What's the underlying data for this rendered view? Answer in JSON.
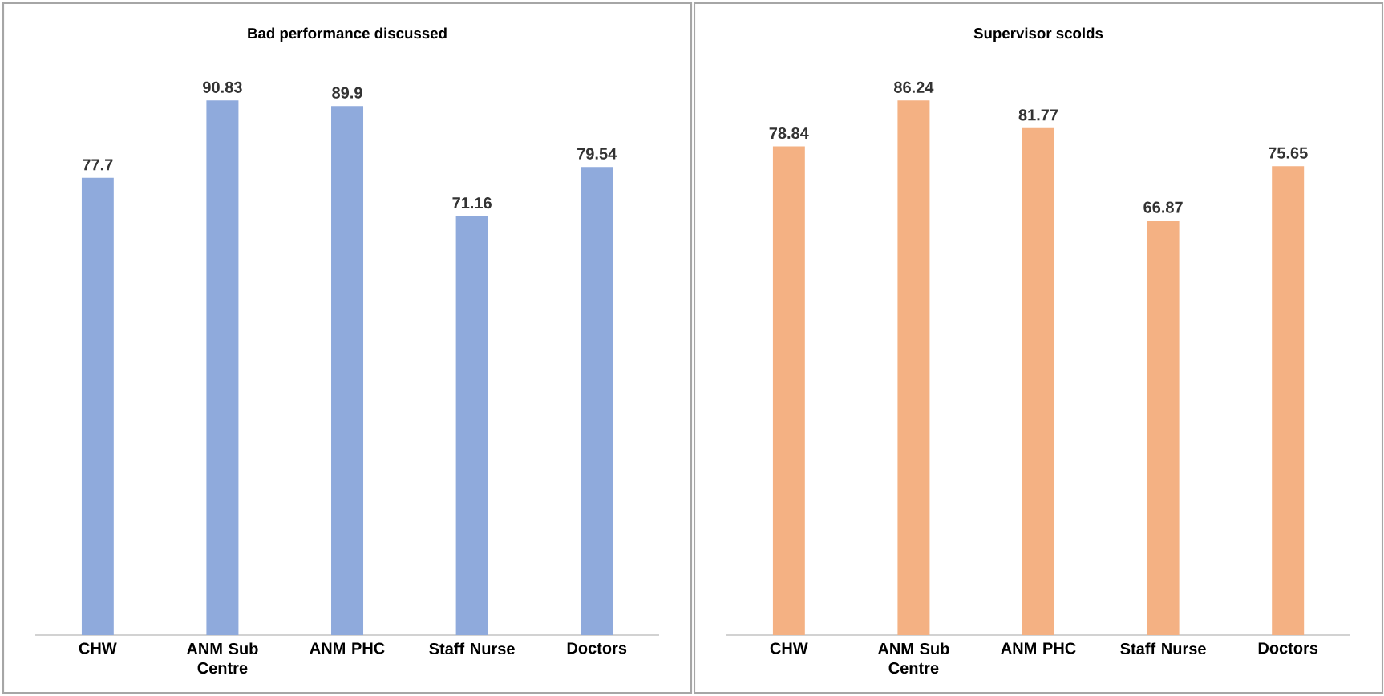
{
  "chart_data": [
    {
      "type": "bar",
      "title": "Bad performance discussed",
      "categories": [
        "CHW",
        "ANM Sub Centre",
        "ANM PHC",
        "Staff Nurse",
        "Doctors"
      ],
      "values": [
        77.7,
        90.83,
        89.9,
        71.16,
        79.54
      ],
      "color": "#8faadc",
      "data_labels": true,
      "tick_labels": "x"
    },
    {
      "type": "bar",
      "title": "Supervisor scolds",
      "categories": [
        "CHW",
        "ANM Sub Centre",
        "ANM PHC",
        "Staff Nurse",
        "Doctors"
      ],
      "values": [
        78.84,
        86.24,
        81.77,
        66.87,
        75.65
      ],
      "color": "#f4b183",
      "data_labels": true,
      "tick_labels": "x"
    }
  ]
}
